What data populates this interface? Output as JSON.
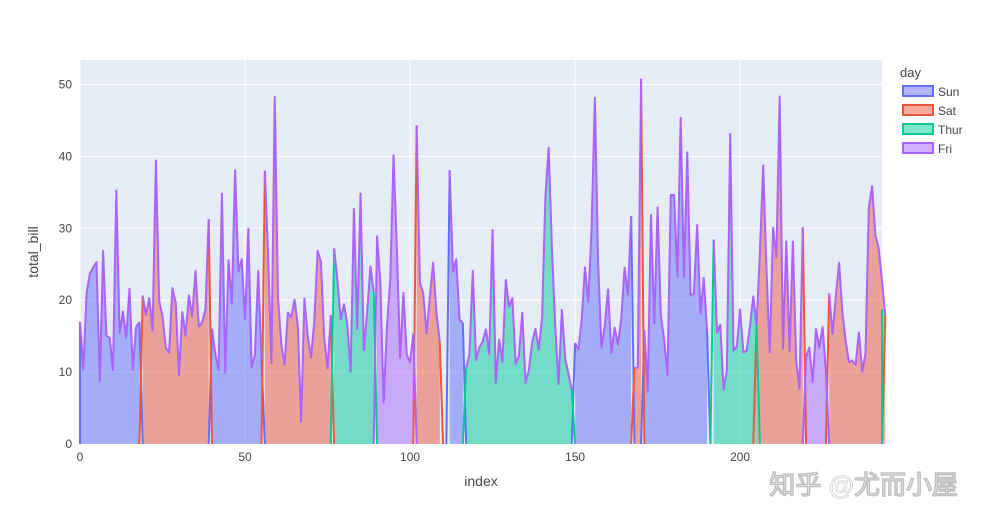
{
  "chart_data": {
    "type": "area",
    "xlabel": "index",
    "ylabel": "total_bill",
    "xlim": [
      0,
      243
    ],
    "ylim": [
      0,
      53.4
    ],
    "x_ticks": [
      0,
      50,
      100,
      150,
      200
    ],
    "y_ticks": [
      0,
      10,
      20,
      30,
      40,
      50
    ],
    "grid": true,
    "legend": {
      "title": "day",
      "placement": "right"
    },
    "series": [
      {
        "name": "Sun",
        "color": "#636efa",
        "fill": "rgba(99,110,250,0.5)",
        "segments": [
          {
            "x_start": 0,
            "values": [
              16.99,
              10.34,
              21.01,
              23.68,
              24.59,
              25.29,
              8.77,
              26.88,
              15.04,
              14.78,
              10.27,
              35.26,
              15.42,
              18.43,
              14.83,
              21.58,
              10.33,
              16.29,
              16.97
            ]
          },
          {
            "x_start": 40,
            "values": [
              16.04,
              12.54,
              10.29,
              34.81,
              9.94,
              25.56,
              19.49,
              38.07,
              23.95,
              25.71,
              17.31,
              29.93,
              10.65,
              12.43,
              24.08,
              11.69
            ]
          },
          {
            "x_start": 112,
            "values": [
              38.07,
              23.95,
              25.71,
              17.31,
              16.82
            ]
          },
          {
            "x_start": 150,
            "values": [
              14.07,
              13.13,
              17.26,
              24.55,
              19.77,
              29.85,
              48.17,
              25.0,
              13.39,
              16.49,
              21.5,
              12.66,
              16.21,
              13.81,
              17.51,
              24.52,
              20.76,
              31.71
            ]
          },
          {
            "x_start": 171,
            "values": [
              15.81,
              7.25,
              31.85,
              16.82,
              32.9,
              17.89,
              14.48,
              9.6,
              34.63,
              34.65,
              23.33,
              45.35,
              23.17,
              40.55,
              20.69,
              20.9,
              30.46,
              18.15,
              23.1,
              15.69
            ]
          }
        ]
      },
      {
        "name": "Sat",
        "color": "#ef553b",
        "fill": "rgba(239,85,59,0.5)",
        "segments": [
          {
            "x_start": 19,
            "values": [
              20.65,
              17.92,
              20.29,
              15.77,
              39.42,
              19.82,
              17.81,
              13.37,
              12.69,
              21.7,
              19.65,
              9.55,
              18.35,
              15.06,
              20.69,
              17.78,
              24.06,
              16.31,
              16.93,
              18.69,
              31.27
            ]
          },
          {
            "x_start": 56,
            "values": [
              38.01,
              26.41,
              11.24,
              48.27,
              20.29,
              13.81,
              11.02,
              18.29,
              17.59,
              20.08,
              16.45,
              3.07,
              20.23,
              15.01,
              12.02,
              17.07,
              26.86,
              25.28,
              14.73,
              10.51,
              17.92
            ]
          },
          {
            "x_start": 102,
            "values": [
              44.3,
              22.42,
              20.92,
              15.36,
              20.49,
              25.21,
              18.24,
              14.31
            ]
          },
          {
            "x_start": 168,
            "values": [
              10.59,
              10.63,
              50.81
            ]
          },
          {
            "x_start": 205,
            "values": [
              16.47,
              26.59,
              38.73,
              24.27,
              12.76,
              30.06,
              25.89,
              48.33,
              13.27,
              28.17,
              12.9,
              28.15,
              11.59,
              7.74,
              30.14
            ]
          },
          {
            "x_start": 227,
            "values": [
              20.92,
              15.36,
              20.49,
              25.21,
              18.24,
              14.31,
              11.38,
              11.6,
              11.02,
              15.53,
              10.07,
              12.6,
              32.83,
              35.83,
              29.03,
              27.18,
              22.67,
              17.82
            ]
          }
        ]
      },
      {
        "name": "Thur",
        "color": "#00cc96",
        "fill": "rgba(0,204,150,0.5)",
        "segments": [
          {
            "x_start": 77,
            "values": [
              27.2,
              22.76,
              17.29,
              19.44,
              16.66,
              10.07,
              32.68,
              15.98,
              34.83,
              13.03,
              18.28,
              24.71,
              21.16
            ]
          },
          {
            "x_start": 117,
            "values": [
              10.65,
              12.43,
              24.08,
              11.69,
              13.42,
              14.26,
              15.95,
              12.48,
              29.8,
              8.52,
              14.52,
              11.38,
              22.82,
              19.08,
              20.27,
              11.17,
              12.26,
              18.26,
              8.51,
              10.33,
              14.15,
              16.0,
              13.16,
              17.47,
              34.3,
              41.19,
              27.05,
              16.43,
              8.35,
              18.64,
              11.87,
              9.78,
              7.51
            ]
          },
          {
            "x_start": 192,
            "values": [
              28.44,
              15.48,
              16.58,
              7.56,
              10.34,
              43.11,
              13.0,
              13.51,
              18.71,
              12.74,
              13.0,
              16.4,
              20.53,
              16.47
            ]
          },
          {
            "x_start": 243,
            "values": [
              18.78
            ]
          }
        ]
      },
      {
        "name": "Fri",
        "color": "#ab63fa",
        "fill": "rgba(171,99,250,0.5)",
        "segments": [
          {
            "x_start": 90,
            "values": [
              28.97,
              22.49,
              5.75,
              16.32,
              22.75,
              40.17,
              27.28,
              12.03,
              21.01,
              12.46,
              11.35,
              15.38
            ]
          },
          {
            "x_start": 220,
            "values": [
              12.16,
              13.42,
              8.58,
              15.98,
              13.42,
              16.27,
              10.09
            ]
          }
        ]
      }
    ],
    "top_line_color": "#ab63fa"
  },
  "watermark": "知乎 @尤而小屋"
}
